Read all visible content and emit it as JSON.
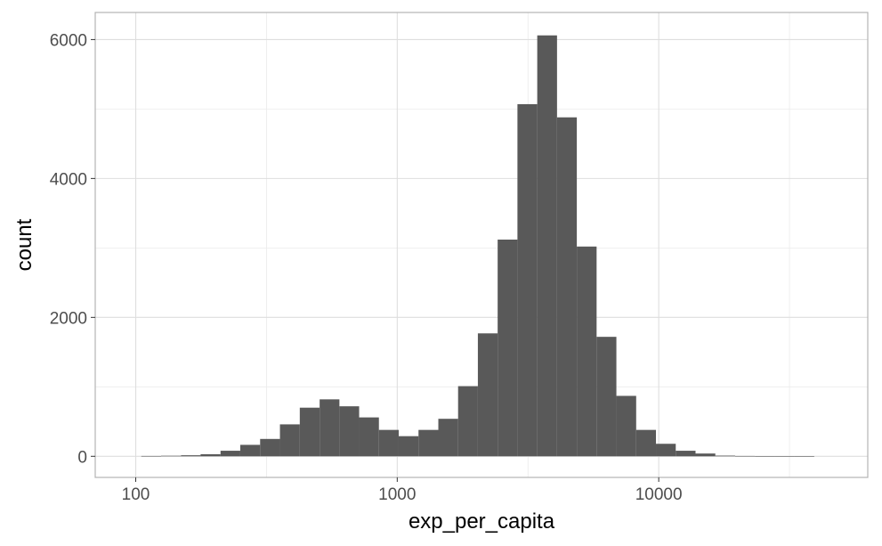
{
  "chart_data": {
    "type": "bar",
    "title": "",
    "xlabel": "exp_per_capita",
    "ylabel": "count",
    "x_scale": "log10",
    "x_ticks": [
      100,
      1000,
      10000
    ],
    "x_tick_labels": [
      "100",
      "1000",
      "10000"
    ],
    "y_ticks": [
      0,
      2000,
      4000,
      6000
    ],
    "y_tick_labels": [
      "0",
      "2000",
      "4000",
      "6000"
    ],
    "xlim": [
      70,
      63000
    ],
    "ylim": [
      -304,
      6390
    ],
    "grid": true,
    "bar_color": "#595959",
    "bin_edges": [
      105,
      125,
      149,
      177,
      211,
      251,
      299,
      356,
      424,
      505,
      601,
      715,
      851,
      1013,
      1206,
      1436,
      1709,
      2034,
      2421,
      2882,
      3431,
      4084,
      4861,
      5786,
      6887,
      8198,
      9758,
      11616,
      13827,
      16458,
      19590,
      23319,
      27758,
      33041,
      39330
    ],
    "values": [
      5,
      8,
      15,
      30,
      80,
      165,
      250,
      460,
      700,
      820,
      720,
      560,
      380,
      290,
      380,
      540,
      1010,
      1770,
      3120,
      5070,
      6060,
      4880,
      3020,
      1720,
      870,
      380,
      180,
      80,
      40,
      10,
      5,
      3,
      2,
      1
    ]
  }
}
